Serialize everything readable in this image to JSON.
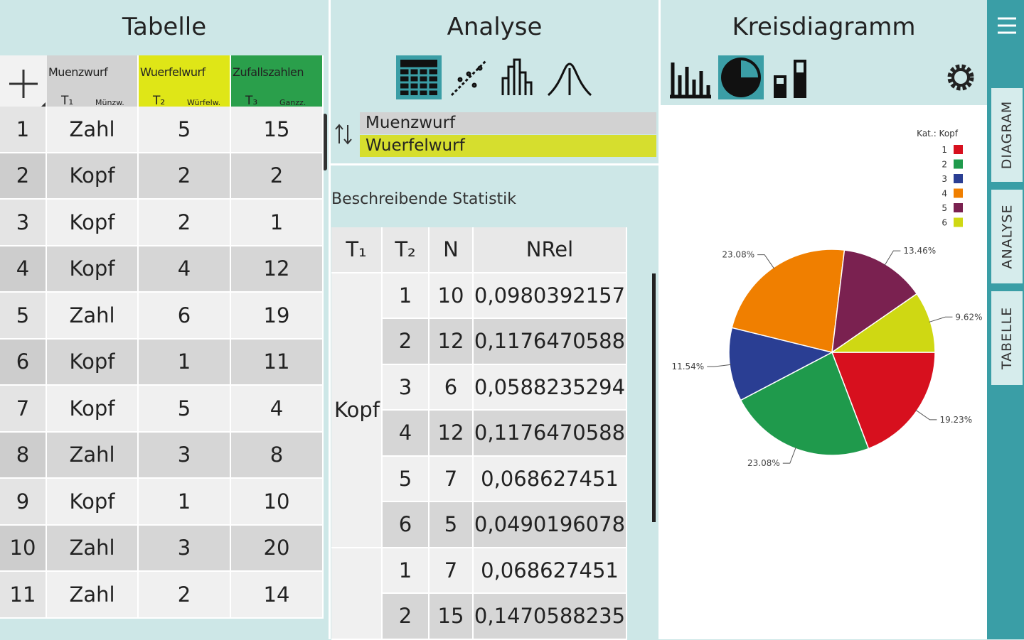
{
  "panels": {
    "table_title": "Tabelle",
    "analysis_title": "Analyse",
    "diagram_title": "Kreisdiagramm"
  },
  "table": {
    "columns": [
      {
        "name": "Muenzwurf",
        "sub": "T₁",
        "short": "Münzw."
      },
      {
        "name": "Wuerfelwurf",
        "sub": "T₂",
        "short": "Würfelw."
      },
      {
        "name": "Zufallszahlen",
        "sub": "T₃",
        "short": "Ganzz."
      }
    ],
    "rows": [
      [
        "1",
        "Zahl",
        "5",
        "15"
      ],
      [
        "2",
        "Kopf",
        "2",
        "2"
      ],
      [
        "3",
        "Kopf",
        "2",
        "1"
      ],
      [
        "4",
        "Kopf",
        "4",
        "12"
      ],
      [
        "5",
        "Zahl",
        "6",
        "19"
      ],
      [
        "6",
        "Kopf",
        "1",
        "11"
      ],
      [
        "7",
        "Kopf",
        "5",
        "4"
      ],
      [
        "8",
        "Zahl",
        "3",
        "8"
      ],
      [
        "9",
        "Kopf",
        "1",
        "10"
      ],
      [
        "10",
        "Zahl",
        "3",
        "20"
      ],
      [
        "11",
        "Zahl",
        "2",
        "14"
      ]
    ]
  },
  "analysis": {
    "variables": [
      "Muenzwurf",
      "Wuerfelwurf"
    ],
    "section": "Beschreibende Statistik",
    "header": [
      "T₁",
      "T₂",
      "N",
      "NRel"
    ],
    "groups": [
      {
        "label": "Kopf",
        "rows": [
          [
            "1",
            "10",
            "0,0980392157"
          ],
          [
            "2",
            "12",
            "0,1176470588"
          ],
          [
            "3",
            "6",
            "0,0588235294"
          ],
          [
            "4",
            "12",
            "0,1176470588"
          ],
          [
            "5",
            "7",
            "0,068627451"
          ],
          [
            "6",
            "5",
            "0,0490196078"
          ]
        ]
      },
      {
        "rows": [
          [
            "1",
            "7",
            "0,068627451"
          ],
          [
            "2",
            "15",
            "0,1470588235"
          ]
        ]
      }
    ]
  },
  "side_tabs": [
    "DIAGRAM",
    "ANALYSE",
    "TABELLE"
  ],
  "chart_data": {
    "type": "pie",
    "legend_title": "Kat.: Kopf",
    "categories": [
      "1",
      "2",
      "3",
      "4",
      "5",
      "6"
    ],
    "values": [
      19.23,
      23.08,
      11.54,
      23.08,
      13.46,
      9.62
    ],
    "value_labels": [
      "19.23%",
      "23.08%",
      "11.54%",
      "23.08%",
      "13.46%",
      "9.62%"
    ],
    "colors": [
      "#d7101e",
      "#1f9a4c",
      "#2a3e93",
      "#f07f00",
      "#7a2150",
      "#cfd813"
    ]
  }
}
